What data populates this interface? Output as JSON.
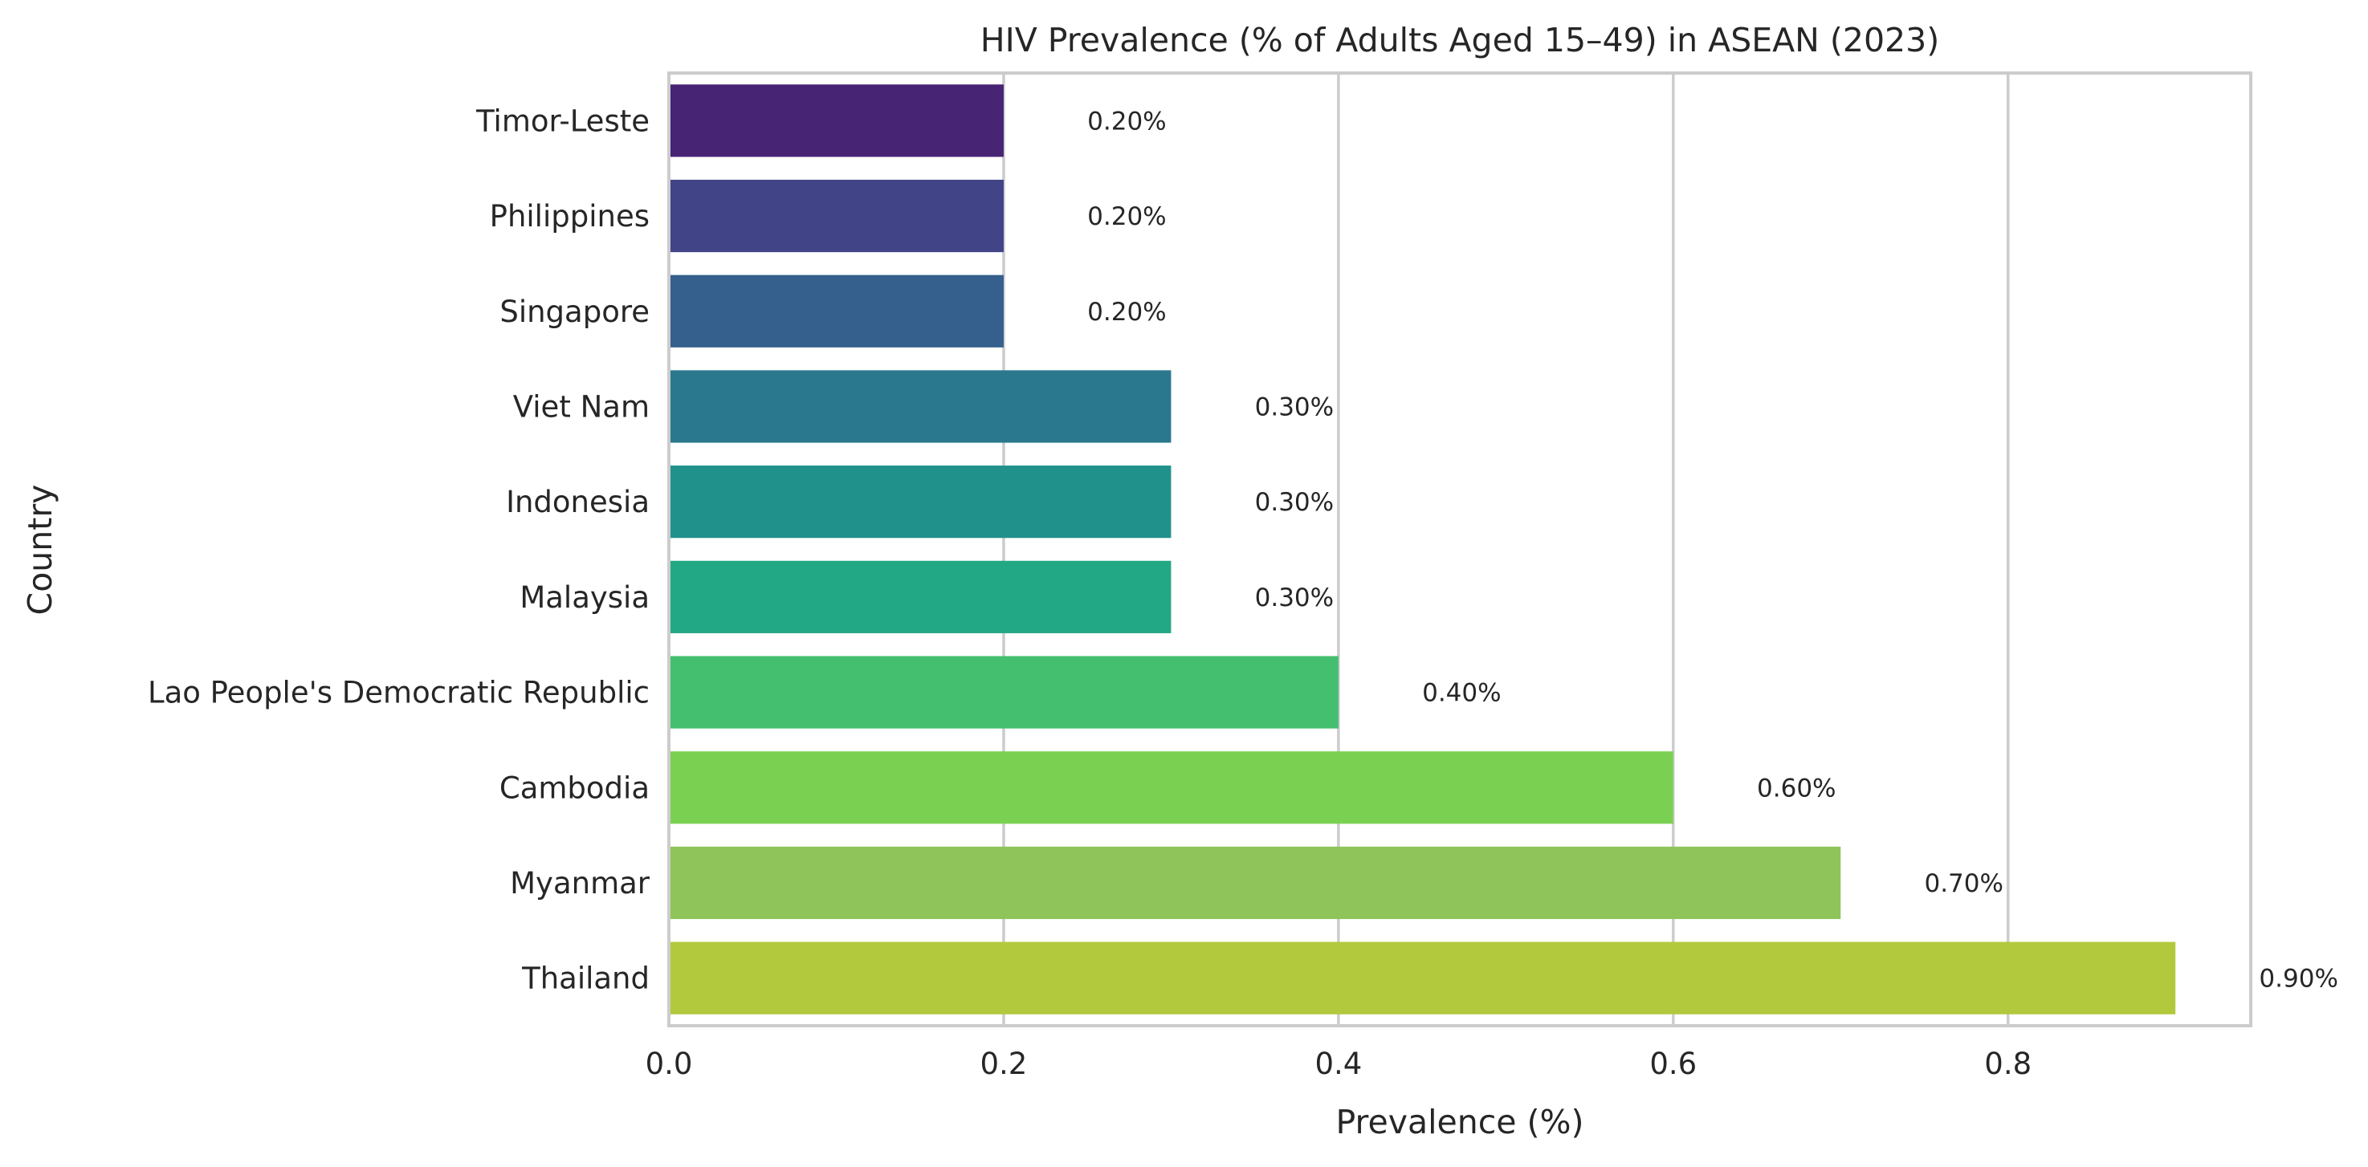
{
  "chart_data": {
    "type": "bar",
    "orientation": "horizontal",
    "title": "HIV Prevalence (% of Adults Aged 15–49) in ASEAN (2023)",
    "xlabel": "Prevalence (%)",
    "ylabel": "Country",
    "xlim": [
      0,
      0.945
    ],
    "xticks": [
      0.0,
      0.2,
      0.4,
      0.6,
      0.8
    ],
    "xtick_labels": [
      "0.0",
      "0.2",
      "0.4",
      "0.6",
      "0.8"
    ],
    "grid": "vertical",
    "categories": [
      "Timor-Leste",
      "Philippines",
      "Singapore",
      "Viet Nam",
      "Indonesia",
      "Malaysia",
      "Lao People's Democratic Republic",
      "Cambodia",
      "Myanmar",
      "Thailand"
    ],
    "values": [
      0.2,
      0.2,
      0.2,
      0.3,
      0.3,
      0.3,
      0.4,
      0.6,
      0.7,
      0.9
    ],
    "data_labels": [
      "0.20%",
      "0.20%",
      "0.20%",
      "0.30%",
      "0.30%",
      "0.30%",
      "0.40%",
      "0.60%",
      "0.70%",
      "0.90%"
    ],
    "colors": [
      "#482475",
      "#414487",
      "#355f8d",
      "#2a788e",
      "#21918c",
      "#22a884",
      "#44bf70",
      "#7ad151",
      "#8fc45a",
      "#b2c93d"
    ]
  }
}
